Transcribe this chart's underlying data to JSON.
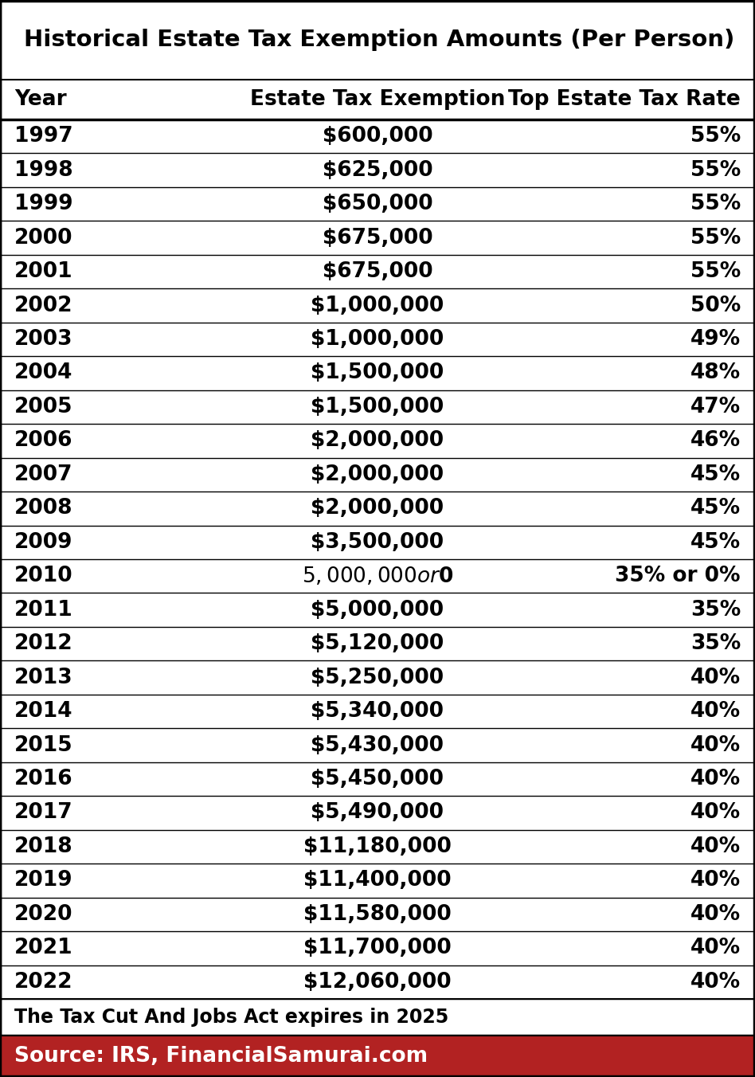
{
  "title": "Historical Estate Tax Exemption Amounts (Per Person)",
  "headers": [
    "Year",
    "Estate Tax Exemption",
    "Top Estate Tax Rate"
  ],
  "rows": [
    [
      "1997",
      "$600,000",
      "55%"
    ],
    [
      "1998",
      "$625,000",
      "55%"
    ],
    [
      "1999",
      "$650,000",
      "55%"
    ],
    [
      "2000",
      "$675,000",
      "55%"
    ],
    [
      "2001",
      "$675,000",
      "55%"
    ],
    [
      "2002",
      "$1,000,000",
      "50%"
    ],
    [
      "2003",
      "$1,000,000",
      "49%"
    ],
    [
      "2004",
      "$1,500,000",
      "48%"
    ],
    [
      "2005",
      "$1,500,000",
      "47%"
    ],
    [
      "2006",
      "$2,000,000",
      "46%"
    ],
    [
      "2007",
      "$2,000,000",
      "45%"
    ],
    [
      "2008",
      "$2,000,000",
      "45%"
    ],
    [
      "2009",
      "$3,500,000",
      "45%"
    ],
    [
      "2010",
      "$5,000,000 or $0",
      "35% or 0%"
    ],
    [
      "2011",
      "$5,000,000",
      "35%"
    ],
    [
      "2012",
      "$5,120,000",
      "35%"
    ],
    [
      "2013",
      "$5,250,000",
      "40%"
    ],
    [
      "2014",
      "$5,340,000",
      "40%"
    ],
    [
      "2015",
      "$5,430,000",
      "40%"
    ],
    [
      "2016",
      "$5,450,000",
      "40%"
    ],
    [
      "2017",
      "$5,490,000",
      "40%"
    ],
    [
      "2018",
      "$11,180,000",
      "40%"
    ],
    [
      "2019",
      "$11,400,000",
      "40%"
    ],
    [
      "2020",
      "$11,580,000",
      "40%"
    ],
    [
      "2021",
      "$11,700,000",
      "40%"
    ],
    [
      "2022",
      "$12,060,000",
      "40%"
    ]
  ],
  "footnote": "The Tax Cut And Jobs Act expires in 2025",
  "source": "Source: IRS, FinancialSamurai.com",
  "source_bg": "#b22222",
  "source_color": "#ffffff",
  "border_color": "#000000",
  "bg_color": "#ffffff",
  "title_fontsize": 21,
  "header_fontsize": 19,
  "row_fontsize": 19,
  "footnote_fontsize": 17,
  "source_fontsize": 19
}
